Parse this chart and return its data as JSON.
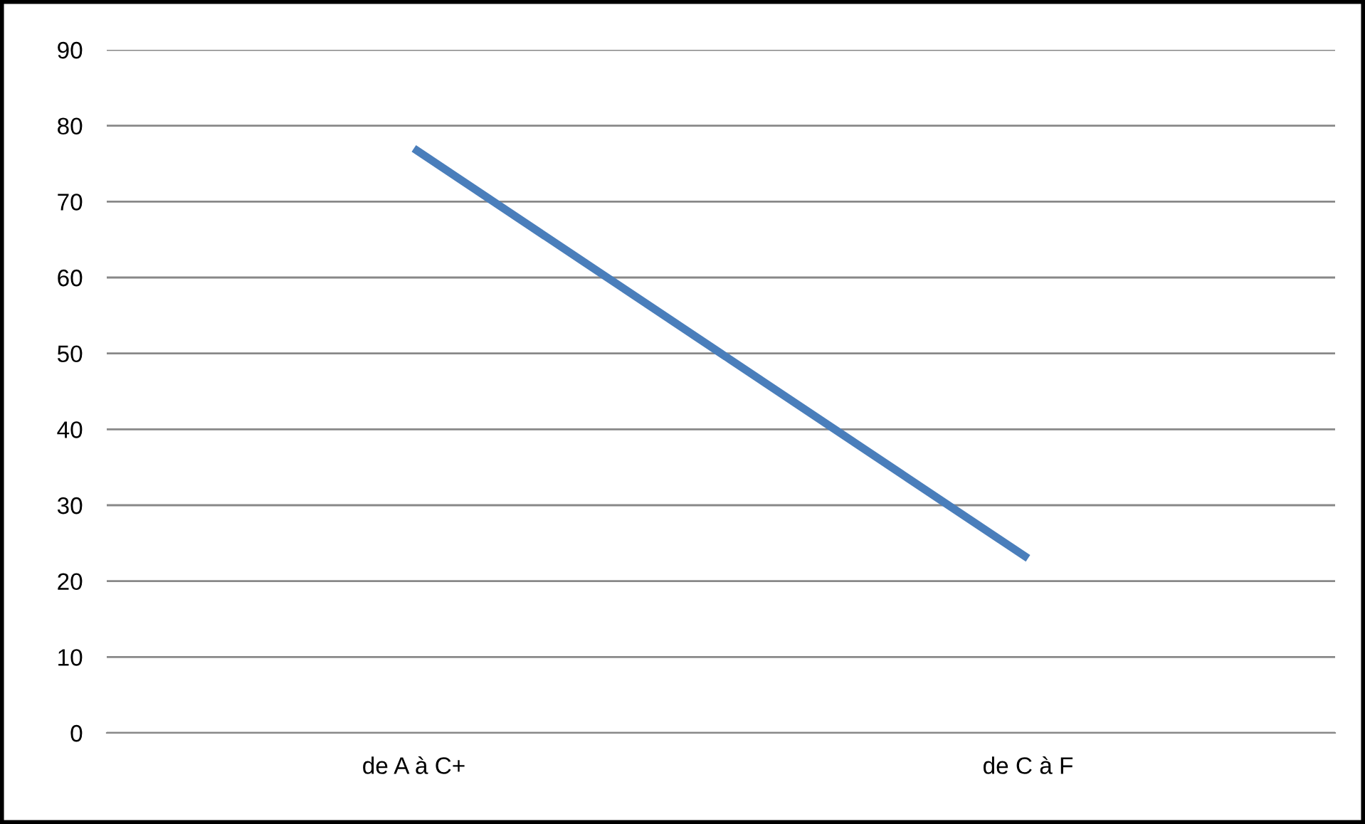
{
  "chart_data": {
    "type": "line",
    "categories": [
      "de A à C+",
      "de C à F"
    ],
    "series": [
      {
        "color": "#4a7ebb",
        "values": [
          77,
          23
        ]
      }
    ],
    "ylim": [
      0,
      90
    ],
    "yticks": [
      0,
      10,
      20,
      30,
      40,
      50,
      60,
      70,
      80,
      90
    ],
    "grid": "y",
    "marker": "none",
    "line_style": "solid"
  }
}
